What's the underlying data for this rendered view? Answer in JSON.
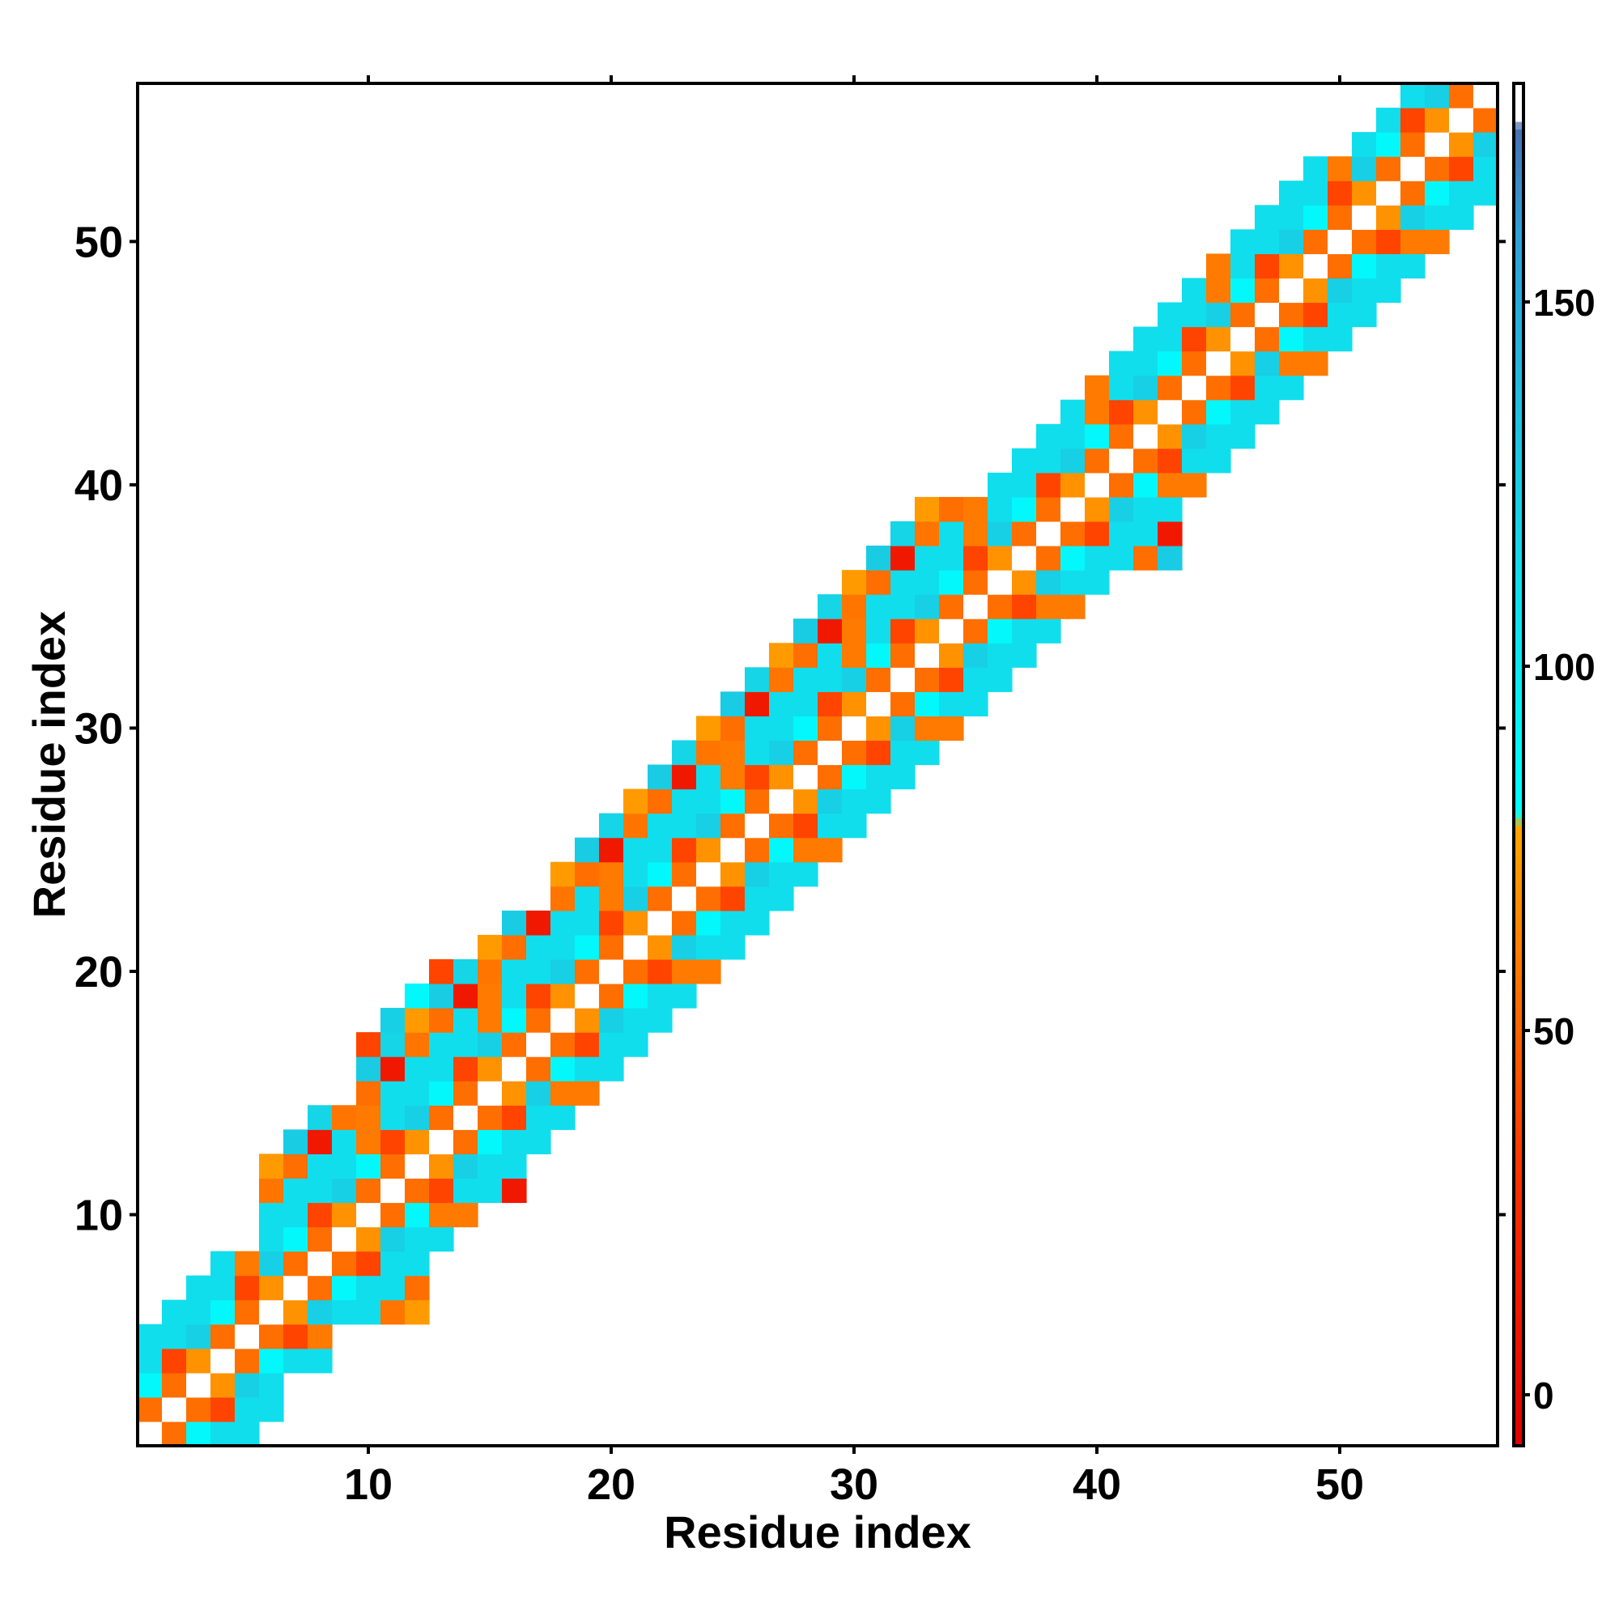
{
  "chart_data": {
    "type": "heatmap",
    "title": "",
    "xlabel": "Residue index",
    "ylabel": "Residue index",
    "xlim": [
      0.5,
      56.5
    ],
    "ylim": [
      0.5,
      56.5
    ],
    "xticks": [
      10,
      20,
      30,
      40,
      50
    ],
    "yticks": [
      10,
      20,
      30,
      40,
      50
    ],
    "grid": false,
    "colorbar": {
      "range": [
        -7,
        180
      ],
      "ticks": [
        0,
        50,
        100,
        150
      ],
      "stops": [
        {
          "value": -7,
          "color": "#e00000"
        },
        {
          "value": 30,
          "color": "#ff3000"
        },
        {
          "value": 60,
          "color": "#ff7a00"
        },
        {
          "value": 78,
          "color": "#ffa500"
        },
        {
          "value": 80,
          "color": "#00ffff"
        },
        {
          "value": 120,
          "color": "#16d3e6"
        },
        {
          "value": 160,
          "color": "#2f9fd6"
        },
        {
          "value": 174,
          "color": "#4a6fb0"
        },
        {
          "value": 175,
          "color": "#ffffff"
        },
        {
          "value": 180,
          "color": "#ffffff"
        }
      ]
    },
    "diagonal_value": 180,
    "band": {
      "min_row_lower": [
        1,
        1,
        1,
        1,
        1,
        2,
        4,
        4,
        6,
        6,
        6,
        6,
        9,
        10,
        11,
        11,
        13,
        14,
        15,
        16,
        17,
        18,
        19,
        20,
        21,
        22,
        23,
        24,
        25,
        26,
        27,
        28,
        29,
        30,
        31,
        32,
        33,
        34,
        35,
        36,
        37,
        37,
        37,
        40,
        41,
        42,
        43,
        44,
        45,
        46,
        47,
        48,
        49,
        50,
        51,
        52
      ],
      "max_row_upper": [
        5,
        6,
        7,
        8,
        8,
        12,
        13,
        14,
        14,
        17,
        18,
        19,
        20,
        20,
        21,
        22,
        22,
        24,
        25,
        26,
        27,
        28,
        29,
        30,
        31,
        32,
        33,
        34,
        35,
        36,
        37,
        38,
        39,
        39,
        39,
        40,
        41,
        42,
        43,
        44,
        45,
        46,
        47,
        48,
        49,
        50,
        51,
        52,
        53,
        53,
        54,
        55,
        56,
        56,
        56,
        56
      ]
    },
    "value_grid_note": "values are produced in the drawing script",
    "cell_values": {
      "pattern": [
        12,
        46,
        64,
        52,
        108,
        96,
        38,
        70,
        118,
        104,
        58,
        14,
        112,
        66,
        90,
        42,
        122,
        8,
        74,
        100,
        55,
        130,
        30,
        62,
        116,
        20,
        86,
        48,
        126,
        40
      ],
      "seed": 7
    }
  }
}
